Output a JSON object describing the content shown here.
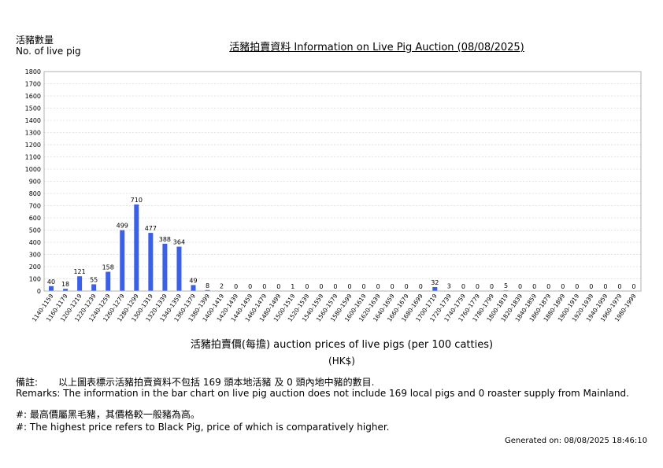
{
  "y_label_zh": "活豬數量",
  "y_label_en": "No. of live pig",
  "title": "活豬拍賣資料 Information on Live Pig Auction (08/08/2025)",
  "x_label": "活豬拍賣價(每擔) auction prices of live pigs (per 100 catties)",
  "unit": "(HK$)",
  "remarks_zh_label": "備註:",
  "remarks_zh": "以上圖表標示活豬拍賣資料不包括 169 頭本地活豬 及 0 頭內地中豬的數目.",
  "remarks_en": "Remarks: The information in the bar chart on live pig auction does not include 169 local pigs and 0 roaster supply from Mainland.",
  "note_zh": "#: 最高價屬黑毛豬，其價格較一般豬為高。",
  "note_en": "#: The highest price refers to Black Pig, price of which is comparatively higher.",
  "generated": "Generated on: 08/08/2025 18:46:10",
  "chart_data": {
    "type": "bar",
    "bar_color": "#3a5fe8",
    "grid": true,
    "ylim": [
      0,
      1800
    ],
    "y_ticks": [
      0,
      100,
      200,
      300,
      400,
      500,
      600,
      700,
      800,
      900,
      1000,
      1100,
      1200,
      1300,
      1400,
      1500,
      1600,
      1700,
      1800
    ],
    "categories": [
      "1140-1159",
      "1160-1179",
      "1200-1219",
      "1220-1239",
      "1240-1259",
      "1260-1279",
      "1280-1299",
      "1300-1319",
      "1320-1339",
      "1340-1359",
      "1360-1379",
      "1380-1399",
      "1400-1419",
      "1420-1439",
      "1440-1459",
      "1460-1479",
      "1480-1499",
      "1500-1519",
      "1520-1539",
      "1540-1559",
      "1560-1579",
      "1580-1599",
      "1600-1619",
      "1620-1639",
      "1640-1659",
      "1660-1679",
      "1680-1699",
      "1700-1719",
      "1720-1739",
      "1740-1759",
      "1760-1779",
      "1780-1799",
      "1800-1819",
      "1820-1839",
      "1840-1859",
      "1860-1879",
      "1880-1899",
      "1900-1919",
      "1920-1939",
      "1940-1959",
      "1960-1979",
      "1980-1999"
    ],
    "values": [
      40,
      18,
      121,
      55,
      158,
      499,
      710,
      477,
      388,
      364,
      49,
      8,
      2,
      0,
      0,
      0,
      0,
      1,
      0,
      0,
      0,
      0,
      0,
      0,
      0,
      0,
      0,
      32,
      3,
      0,
      0,
      0,
      5,
      0,
      0,
      0,
      0,
      0,
      0,
      0,
      0,
      0
    ]
  }
}
